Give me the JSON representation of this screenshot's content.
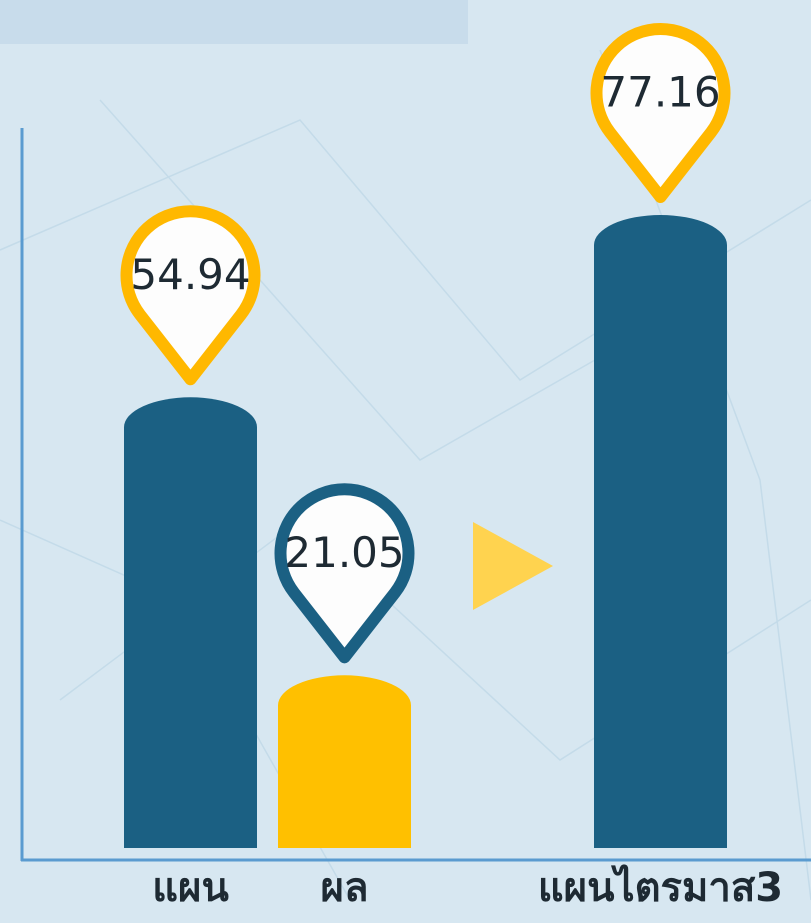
{
  "chart_data": {
    "type": "bar",
    "categories": [
      "แผน",
      "ผล",
      "แผนไตรมาส3"
    ],
    "values": [
      54.94,
      21.05,
      77.16
    ],
    "colors": [
      "#1b6083",
      "#ffc000",
      "#1b6083"
    ],
    "pin_colors": [
      "#ffb800",
      "#1b6083",
      "#ffb800"
    ]
  }
}
